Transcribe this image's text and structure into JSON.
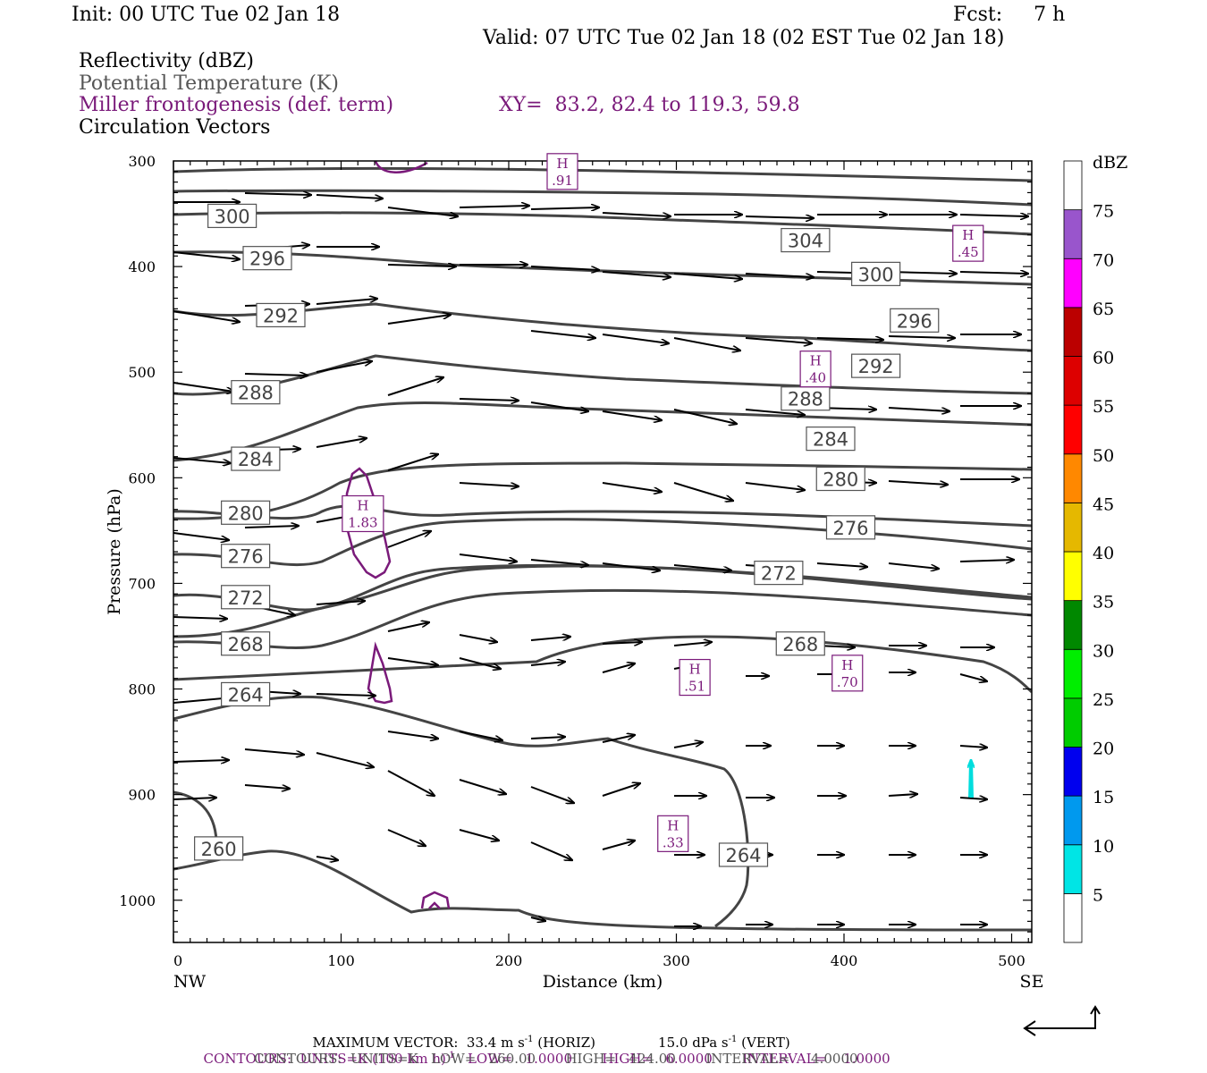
{
  "header": {
    "init": "Init: 00 UTC Tue 02 Jan 18",
    "fcst": "Fcst:     7 h",
    "valid": "Valid: 07 UTC Tue 02 Jan 18 (02 EST Tue 02 Jan 18)",
    "field1": "Reflectivity (dBZ)",
    "field2": "Potential Temperature (K)",
    "field3": "Miller frontogenesis (def. term)",
    "xy": "XY=  83.2, 82.4 to 119.3, 59.8",
    "field4": "Circulation Vectors"
  },
  "footer": {
    "maxvec_a": "MAXIMUM VECTOR:  33.4 m s",
    "maxvec_b": " (HORIZ)",
    "maxvec_c": "15.0 dPa s",
    "maxvec_d": " (VERT)",
    "cont1_a": "CONTOURS:  UNITS=K (100 km h)",
    "cont1_b": "   LOW=   1.0000       HIGH=   6.0000       INTERVAL=    1.0000",
    "cont2": "CONTOURS:  UNITS=K   LOW=   260.00       HIGH=   424.00       INTERVAL=     4.0000",
    "sup": "-1"
  },
  "chart_data": {
    "type": "cross-section",
    "xlabel": "Distance (km)",
    "ylabel": "Pressure (hPa)",
    "xlim": [
      0,
      512
    ],
    "ylim": [
      300,
      1040
    ],
    "x_ticks": [
      0,
      100,
      200,
      300,
      400,
      500
    ],
    "y_ticks": [
      300,
      400,
      500,
      600,
      700,
      800,
      900,
      1000
    ],
    "x_end_labels": {
      "left": "NW",
      "right": "SE"
    },
    "colorbar": {
      "title": "dBZ",
      "levels": [
        5,
        10,
        15,
        20,
        25,
        30,
        35,
        40,
        45,
        50,
        55,
        60,
        65,
        70,
        75
      ],
      "colors": [
        "#ffffff",
        "#00e5e5",
        "#0099ee",
        "#0000ee",
        "#00cc00",
        "#00ee00",
        "#008800",
        "#ffff00",
        "#e5b800",
        "#ff8800",
        "#ff0000",
        "#dd0000",
        "#bb0000",
        "#ff00ff",
        "#9955cc",
        "#ffffff"
      ]
    },
    "theta_labels": [
      {
        "value": "300",
        "x": 35,
        "p": 352
      },
      {
        "value": "296",
        "x": 56,
        "p": 392
      },
      {
        "value": "292",
        "x": 64,
        "p": 446
      },
      {
        "value": "288",
        "x": 49,
        "p": 519
      },
      {
        "value": "284",
        "x": 49,
        "p": 582
      },
      {
        "value": "280",
        "x": 43,
        "p": 633
      },
      {
        "value": "276",
        "x": 43,
        "p": 674
      },
      {
        "value": "272",
        "x": 43,
        "p": 713
      },
      {
        "value": "268",
        "x": 43,
        "p": 757
      },
      {
        "value": "264",
        "x": 43,
        "p": 805
      },
      {
        "value": "260",
        "x": 27,
        "p": 951
      },
      {
        "value": "304",
        "x": 377,
        "p": 375
      },
      {
        "value": "300",
        "x": 419,
        "p": 407
      },
      {
        "value": "296",
        "x": 442,
        "p": 451
      },
      {
        "value": "292",
        "x": 419,
        "p": 494
      },
      {
        "value": "288",
        "x": 377,
        "p": 525
      },
      {
        "value": "284",
        "x": 392,
        "p": 563
      },
      {
        "value": "280",
        "x": 398,
        "p": 601
      },
      {
        "value": "276",
        "x": 404,
        "p": 647
      },
      {
        "value": "272",
        "x": 361,
        "p": 690
      },
      {
        "value": "268",
        "x": 374,
        "p": 757
      },
      {
        "value": "264",
        "x": 340,
        "p": 957
      }
    ],
    "front_maxima": [
      {
        "label": "H",
        "value": ".91",
        "x": 232,
        "p": 310
      },
      {
        "label": "H",
        "value": ".45",
        "x": 474,
        "p": 378
      },
      {
        "label": "H",
        "value": ".40",
        "x": 383,
        "p": 497
      },
      {
        "label": "H",
        "value": "1.83",
        "x": 113,
        "p": 634
      },
      {
        "label": "H",
        "value": ".51",
        "x": 311,
        "p": 789
      },
      {
        "label": "H",
        "value": ".70",
        "x": 402,
        "p": 785
      },
      {
        "label": "H",
        "value": ".33",
        "x": 298,
        "p": 937
      }
    ]
  }
}
